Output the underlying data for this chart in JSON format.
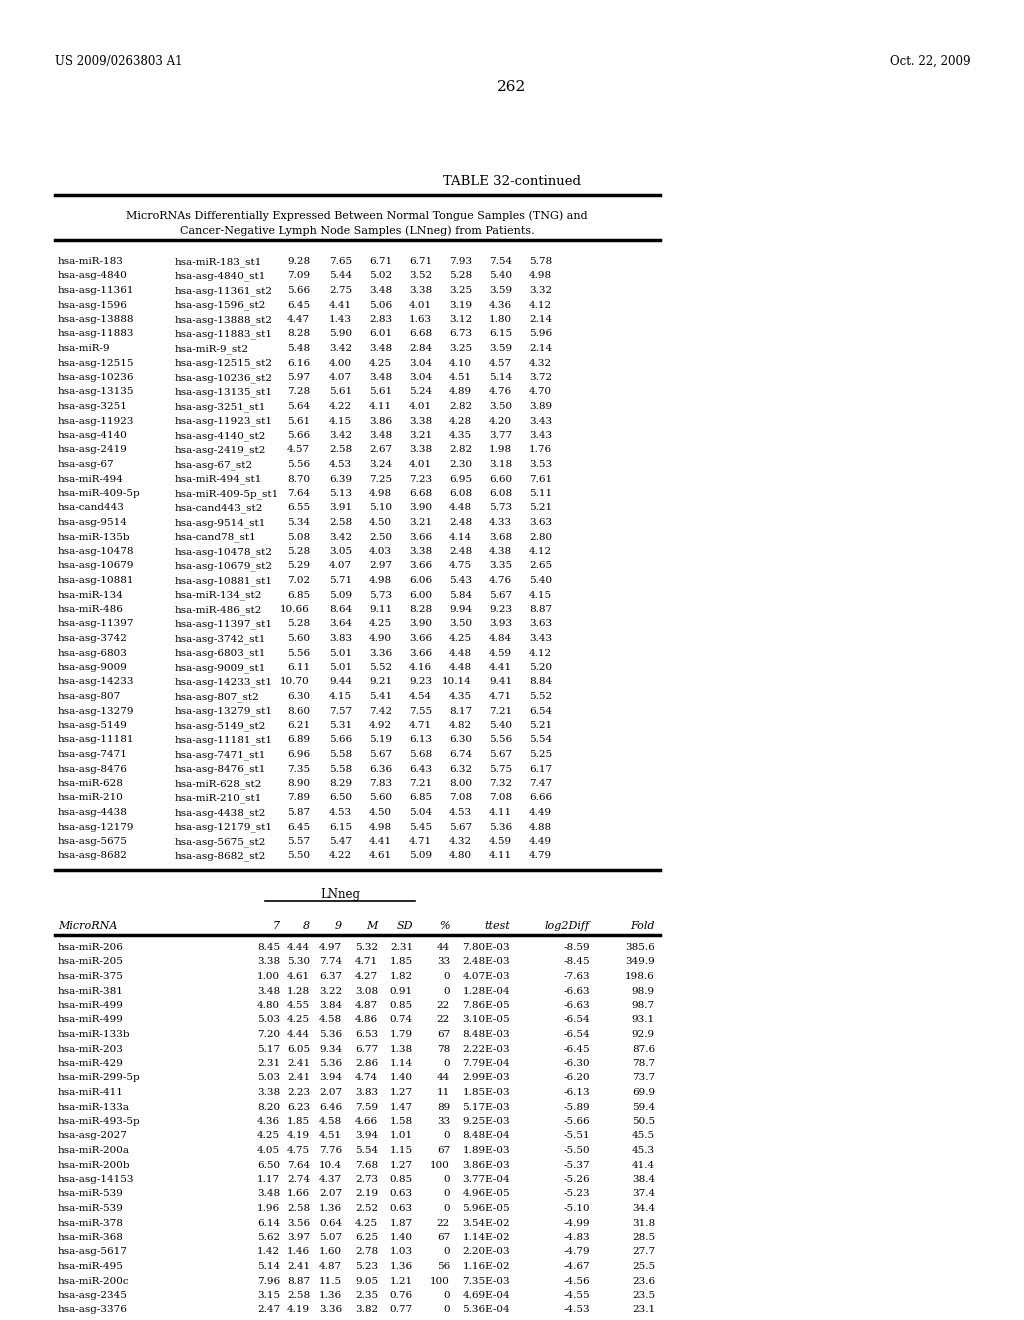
{
  "page_number": "262",
  "patent_left": "US 2009/0263803 A1",
  "patent_right": "Oct. 22, 2009",
  "table_title": "TABLE 32-continued",
  "subtitle1": "MicroRNAs Differentially Expressed Between Normal Tongue Samples (TNG) and",
  "subtitle2": "Cancer-Negative Lymph Node Samples (LNneg) from Patients.",
  "upper_rows": [
    [
      "hsa-miR-183",
      "hsa-miR-183_st1",
      "9.28",
      "7.65",
      "6.71",
      "6.71",
      "7.93",
      "7.54",
      "5.78"
    ],
    [
      "hsa-asg-4840",
      "hsa-asg-4840_st1",
      "7.09",
      "5.44",
      "5.02",
      "3.52",
      "5.28",
      "5.40",
      "4.98"
    ],
    [
      "hsa-asg-11361",
      "hsa-asg-11361_st2",
      "5.66",
      "2.75",
      "3.48",
      "3.38",
      "3.25",
      "3.59",
      "3.32"
    ],
    [
      "hsa-asg-1596",
      "hsa-asg-1596_st2",
      "6.45",
      "4.41",
      "5.06",
      "4.01",
      "3.19",
      "4.36",
      "4.12"
    ],
    [
      "hsa-asg-13888",
      "hsa-asg-13888_st2",
      "4.47",
      "1.43",
      "2.83",
      "1.63",
      "3.12",
      "1.80",
      "2.14"
    ],
    [
      "hsa-asg-11883",
      "hsa-asg-11883_st1",
      "8.28",
      "5.90",
      "6.01",
      "6.68",
      "6.73",
      "6.15",
      "5.96"
    ],
    [
      "hsa-miR-9",
      "hsa-miR-9_st2",
      "5.48",
      "3.42",
      "3.48",
      "2.84",
      "3.25",
      "3.59",
      "2.14"
    ],
    [
      "hsa-asg-12515",
      "hsa-asg-12515_st2",
      "6.16",
      "4.00",
      "4.25",
      "3.04",
      "4.10",
      "4.57",
      "4.32"
    ],
    [
      "hsa-asg-10236",
      "hsa-asg-10236_st2",
      "5.97",
      "4.07",
      "3.48",
      "3.04",
      "4.51",
      "5.14",
      "3.72"
    ],
    [
      "hsa-asg-13135",
      "hsa-asg-13135_st1",
      "7.28",
      "5.61",
      "5.61",
      "5.24",
      "4.89",
      "4.76",
      "4.70"
    ],
    [
      "hsa-asg-3251",
      "hsa-asg-3251_st1",
      "5.64",
      "4.22",
      "4.11",
      "4.01",
      "2.82",
      "3.50",
      "3.89"
    ],
    [
      "hsa-asg-11923",
      "hsa-asg-11923_st1",
      "5.61",
      "4.15",
      "3.86",
      "3.38",
      "4.28",
      "4.20",
      "3.43"
    ],
    [
      "hsa-asg-4140",
      "hsa-asg-4140_st2",
      "5.66",
      "3.42",
      "3.48",
      "3.21",
      "4.35",
      "3.77",
      "3.43"
    ],
    [
      "hsa-asg-2419",
      "hsa-asg-2419_st2",
      "4.57",
      "2.58",
      "2.67",
      "3.38",
      "2.82",
      "1.98",
      "1.76"
    ],
    [
      "hsa-asg-67",
      "hsa-asg-67_st2",
      "5.56",
      "4.53",
      "3.24",
      "4.01",
      "2.30",
      "3.18",
      "3.53"
    ],
    [
      "hsa-miR-494",
      "hsa-miR-494_st1",
      "8.70",
      "6.39",
      "7.25",
      "7.23",
      "6.95",
      "6.60",
      "7.61"
    ],
    [
      "hsa-miR-409-5p",
      "hsa-miR-409-5p_st1",
      "7.64",
      "5.13",
      "4.98",
      "6.68",
      "6.08",
      "6.08",
      "5.11"
    ],
    [
      "hsa-cand443",
      "hsa-cand443_st2",
      "6.55",
      "3.91",
      "5.10",
      "3.90",
      "4.48",
      "5.73",
      "5.21"
    ],
    [
      "hsa-asg-9514",
      "hsa-asg-9514_st1",
      "5.34",
      "2.58",
      "4.50",
      "3.21",
      "2.48",
      "4.33",
      "3.63"
    ],
    [
      "hsa-miR-135b",
      "hsa-cand78_st1",
      "5.08",
      "3.42",
      "2.50",
      "3.66",
      "4.14",
      "3.68",
      "2.80"
    ],
    [
      "hsa-asg-10478",
      "hsa-asg-10478_st2",
      "5.28",
      "3.05",
      "4.03",
      "3.38",
      "2.48",
      "4.38",
      "4.12"
    ],
    [
      "hsa-asg-10679",
      "hsa-asg-10679_st2",
      "5.29",
      "4.07",
      "2.97",
      "3.66",
      "4.75",
      "3.35",
      "2.65"
    ],
    [
      "hsa-asg-10881",
      "hsa-asg-10881_st1",
      "7.02",
      "5.71",
      "4.98",
      "6.06",
      "5.43",
      "4.76",
      "5.40"
    ],
    [
      "hsa-miR-134",
      "hsa-miR-134_st2",
      "6.85",
      "5.09",
      "5.73",
      "6.00",
      "5.84",
      "5.67",
      "4.15"
    ],
    [
      "hsa-miR-486",
      "hsa-miR-486_st2",
      "10.66",
      "8.64",
      "9.11",
      "8.28",
      "9.94",
      "9.23",
      "8.87"
    ],
    [
      "hsa-asg-11397",
      "hsa-asg-11397_st1",
      "5.28",
      "3.64",
      "4.25",
      "3.90",
      "3.50",
      "3.93",
      "3.63"
    ],
    [
      "hsa-asg-3742",
      "hsa-asg-3742_st1",
      "5.60",
      "3.83",
      "4.90",
      "3.66",
      "4.25",
      "4.84",
      "3.43"
    ],
    [
      "hsa-asg-6803",
      "hsa-asg-6803_st1",
      "5.56",
      "5.01",
      "3.36",
      "3.66",
      "4.48",
      "4.59",
      "4.12"
    ],
    [
      "hsa-asg-9009",
      "hsa-asg-9009_st1",
      "6.11",
      "5.01",
      "5.52",
      "4.16",
      "4.48",
      "4.41",
      "5.20"
    ],
    [
      "hsa-asg-14233",
      "hsa-asg-14233_st1",
      "10.70",
      "9.44",
      "9.21",
      "9.23",
      "10.14",
      "9.41",
      "8.84"
    ],
    [
      "hsa-asg-807",
      "hsa-asg-807_st2",
      "6.30",
      "4.15",
      "5.41",
      "4.54",
      "4.35",
      "4.71",
      "5.52"
    ],
    [
      "hsa-asg-13279",
      "hsa-asg-13279_st1",
      "8.60",
      "7.57",
      "7.42",
      "7.55",
      "8.17",
      "7.21",
      "6.54"
    ],
    [
      "hsa-asg-5149",
      "hsa-asg-5149_st2",
      "6.21",
      "5.31",
      "4.92",
      "4.71",
      "4.82",
      "5.40",
      "5.21"
    ],
    [
      "hsa-asg-11181",
      "hsa-asg-11181_st1",
      "6.89",
      "5.66",
      "5.19",
      "6.13",
      "6.30",
      "5.56",
      "5.54"
    ],
    [
      "hsa-asg-7471",
      "hsa-asg-7471_st1",
      "6.96",
      "5.58",
      "5.67",
      "5.68",
      "6.74",
      "5.67",
      "5.25"
    ],
    [
      "hsa-asg-8476",
      "hsa-asg-8476_st1",
      "7.35",
      "5.58",
      "6.36",
      "6.43",
      "6.32",
      "5.75",
      "6.17"
    ],
    [
      "hsa-miR-628",
      "hsa-miR-628_st2",
      "8.90",
      "8.29",
      "7.83",
      "7.21",
      "8.00",
      "7.32",
      "7.47"
    ],
    [
      "hsa-miR-210",
      "hsa-miR-210_st1",
      "7.89",
      "6.50",
      "5.60",
      "6.85",
      "7.08",
      "7.08",
      "6.66"
    ],
    [
      "hsa-asg-4438",
      "hsa-asg-4438_st2",
      "5.87",
      "4.53",
      "4.50",
      "5.04",
      "4.53",
      "4.11",
      "4.49"
    ],
    [
      "hsa-asg-12179",
      "hsa-asg-12179_st1",
      "6.45",
      "6.15",
      "4.98",
      "5.45",
      "5.67",
      "5.36",
      "4.88"
    ],
    [
      "hsa-asg-5675",
      "hsa-asg-5675_st2",
      "5.57",
      "5.47",
      "4.41",
      "4.71",
      "4.32",
      "4.59",
      "4.49"
    ],
    [
      "hsa-asg-8682",
      "hsa-asg-8682_st2",
      "5.50",
      "4.22",
      "4.61",
      "5.09",
      "4.80",
      "4.11",
      "4.79"
    ]
  ],
  "lower_header_group": "LNneg",
  "lower_cols": [
    "MicroRNA",
    "7",
    "8",
    "9",
    "M",
    "SD",
    "%",
    "ttest",
    "log2Diff",
    "Fold"
  ],
  "lower_rows": [
    [
      "hsa-miR-206",
      "8.45",
      "4.44",
      "4.97",
      "5.32",
      "2.31",
      "44",
      "7.80E-03",
      "-8.59",
      "385.6"
    ],
    [
      "hsa-miR-205",
      "3.38",
      "5.30",
      "7.74",
      "4.71",
      "1.85",
      "33",
      "2.48E-03",
      "-8.45",
      "349.9"
    ],
    [
      "hsa-miR-375",
      "1.00",
      "4.61",
      "6.37",
      "4.27",
      "1.82",
      "0",
      "4.07E-03",
      "-7.63",
      "198.6"
    ],
    [
      "hsa-miR-381",
      "3.48",
      "1.28",
      "3.22",
      "3.08",
      "0.91",
      "0",
      "1.28E-04",
      "-6.63",
      "98.9"
    ],
    [
      "hsa-miR-499",
      "4.80",
      "4.55",
      "3.84",
      "4.87",
      "0.85",
      "22",
      "7.86E-05",
      "-6.63",
      "98.7"
    ],
    [
      "hsa-miR-499",
      "5.03",
      "4.25",
      "4.58",
      "4.86",
      "0.74",
      "22",
      "3.10E-05",
      "-6.54",
      "93.1"
    ],
    [
      "hsa-miR-133b",
      "7.20",
      "4.44",
      "5.36",
      "6.53",
      "1.79",
      "67",
      "8.48E-03",
      "-6.54",
      "92.9"
    ],
    [
      "hsa-miR-203",
      "5.17",
      "6.05",
      "9.34",
      "6.77",
      "1.38",
      "78",
      "2.22E-03",
      "-6.45",
      "87.6"
    ],
    [
      "hsa-miR-429",
      "2.31",
      "2.41",
      "5.36",
      "2.86",
      "1.14",
      "0",
      "7.79E-04",
      "-6.30",
      "78.7"
    ],
    [
      "hsa-miR-299-5p",
      "5.03",
      "2.41",
      "3.94",
      "4.74",
      "1.40",
      "44",
      "2.99E-03",
      "-6.20",
      "73.7"
    ],
    [
      "hsa-miR-411",
      "3.38",
      "2.23",
      "2.07",
      "3.83",
      "1.27",
      "11",
      "1.85E-03",
      "-6.13",
      "69.9"
    ],
    [
      "hsa-miR-133a",
      "8.20",
      "6.23",
      "6.46",
      "7.59",
      "1.47",
      "89",
      "5.17E-03",
      "-5.89",
      "59.4"
    ],
    [
      "hsa-miR-493-5p",
      "4.36",
      "1.85",
      "4.58",
      "4.66",
      "1.58",
      "33",
      "9.25E-03",
      "-5.66",
      "50.5"
    ],
    [
      "hsa-asg-2027",
      "4.25",
      "4.19",
      "4.51",
      "3.94",
      "1.01",
      "0",
      "8.48E-04",
      "-5.51",
      "45.5"
    ],
    [
      "hsa-miR-200a",
      "4.05",
      "4.75",
      "7.76",
      "5.54",
      "1.15",
      "67",
      "1.89E-03",
      "-5.50",
      "45.3"
    ],
    [
      "hsa-miR-200b",
      "6.50",
      "7.64",
      "10.4",
      "7.68",
      "1.27",
      "100",
      "3.86E-03",
      "-5.37",
      "41.4"
    ],
    [
      "hsa-asg-14153",
      "1.17",
      "2.74",
      "4.37",
      "2.73",
      "0.85",
      "0",
      "3.77E-04",
      "-5.26",
      "38.4"
    ],
    [
      "hsa-miR-539",
      "3.48",
      "1.66",
      "2.07",
      "2.19",
      "0.63",
      "0",
      "4.96E-05",
      "-5.23",
      "37.4"
    ],
    [
      "hsa-miR-539",
      "1.96",
      "2.58",
      "1.36",
      "2.52",
      "0.63",
      "0",
      "5.96E-05",
      "-5.10",
      "34.4"
    ],
    [
      "hsa-miR-378",
      "6.14",
      "3.56",
      "0.64",
      "4.25",
      "1.87",
      "22",
      "3.54E-02",
      "-4.99",
      "31.8"
    ],
    [
      "hsa-miR-368",
      "5.62",
      "3.97",
      "5.07",
      "6.25",
      "1.40",
      "67",
      "1.14E-02",
      "-4.83",
      "28.5"
    ],
    [
      "hsa-asg-5617",
      "1.42",
      "1.46",
      "1.60",
      "2.78",
      "1.03",
      "0",
      "2.20E-03",
      "-4.79",
      "27.7"
    ],
    [
      "hsa-miR-495",
      "5.14",
      "2.41",
      "4.87",
      "5.23",
      "1.36",
      "56",
      "1.16E-02",
      "-4.67",
      "25.5"
    ],
    [
      "hsa-miR-200c",
      "7.96",
      "8.87",
      "11.5",
      "9.05",
      "1.21",
      "100",
      "7.35E-03",
      "-4.56",
      "23.6"
    ],
    [
      "hsa-asg-2345",
      "3.15",
      "2.58",
      "1.36",
      "2.35",
      "0.76",
      "0",
      "4.69E-04",
      "-4.55",
      "23.5"
    ],
    [
      "hsa-asg-3376",
      "2.47",
      "4.19",
      "3.36",
      "3.82",
      "0.77",
      "0",
      "5.36E-04",
      "-4.53",
      "23.1"
    ]
  ]
}
